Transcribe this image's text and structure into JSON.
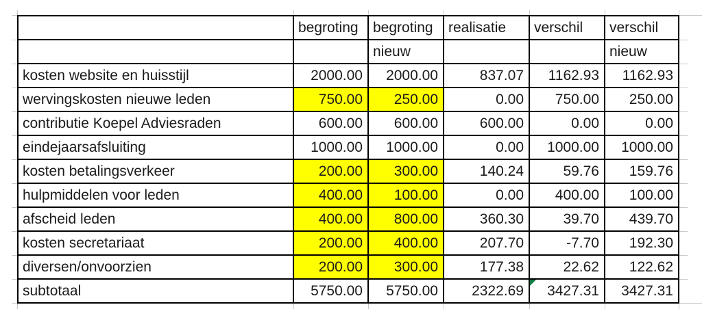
{
  "sheet": {
    "columns": [
      {
        "id": "label",
        "header1": "",
        "header2": ""
      },
      {
        "id": "begroting",
        "header1": "begroting",
        "header2": ""
      },
      {
        "id": "begroting-nieuw",
        "header1": "begroting",
        "header2": "nieuw"
      },
      {
        "id": "realisatie",
        "header1": "realisatie",
        "header2": ""
      },
      {
        "id": "verschil",
        "header1": "verschil",
        "header2": ""
      },
      {
        "id": "verschil-nieuw",
        "header1": "verschil",
        "header2": "nieuw"
      }
    ],
    "rows": [
      {
        "label": "kosten website en huisstijl",
        "values": [
          "2000.00",
          "2000.00",
          "837.07",
          "1162.93",
          "1162.93"
        ],
        "highlight_cols": []
      },
      {
        "label": "wervingskosten nieuwe leden",
        "values": [
          "750.00",
          "250.00",
          "0.00",
          "750.00",
          "250.00"
        ],
        "highlight_cols": [
          0,
          1
        ]
      },
      {
        "label": "contributie Koepel Adviesraden",
        "values": [
          "600.00",
          "600.00",
          "600.00",
          "0.00",
          "0.00"
        ],
        "highlight_cols": []
      },
      {
        "label": "eindejaarsafsluiting",
        "values": [
          "1000.00",
          "1000.00",
          "0.00",
          "1000.00",
          "1000.00"
        ],
        "highlight_cols": []
      },
      {
        "label": "kosten betalingsverkeer",
        "values": [
          "200.00",
          "300.00",
          "140.24",
          "59.76",
          "159.76"
        ],
        "highlight_cols": [
          0,
          1
        ]
      },
      {
        "label": "hulpmiddelen voor leden",
        "values": [
          "400.00",
          "100.00",
          "0.00",
          "400.00",
          "100.00"
        ],
        "highlight_cols": [
          0,
          1
        ]
      },
      {
        "label": "afscheid leden",
        "values": [
          "400.00",
          "800.00",
          "360.30",
          "39.70",
          "439.70"
        ],
        "highlight_cols": [
          0,
          1
        ]
      },
      {
        "label": "kosten secretariaat",
        "values": [
          "200.00",
          "400.00",
          "207.70",
          "-7.70",
          "192.30"
        ],
        "highlight_cols": [
          0,
          1
        ]
      },
      {
        "label": "diversen/onvoorzien",
        "values": [
          "200.00",
          "300.00",
          "177.38",
          "22.62",
          "122.62"
        ],
        "highlight_cols": [
          0,
          1
        ]
      },
      {
        "label": "subtotaal",
        "values": [
          "5750.00",
          "5750.00",
          "2322.69",
          "3427.31",
          "3427.31"
        ],
        "highlight_cols": [],
        "error_indicator_col": 3
      }
    ],
    "colors": {
      "highlight": "#FFFF00",
      "error_indicator": "#107C41",
      "grid_border": "#000000",
      "faint_gridline": "#C9C9C9"
    }
  }
}
